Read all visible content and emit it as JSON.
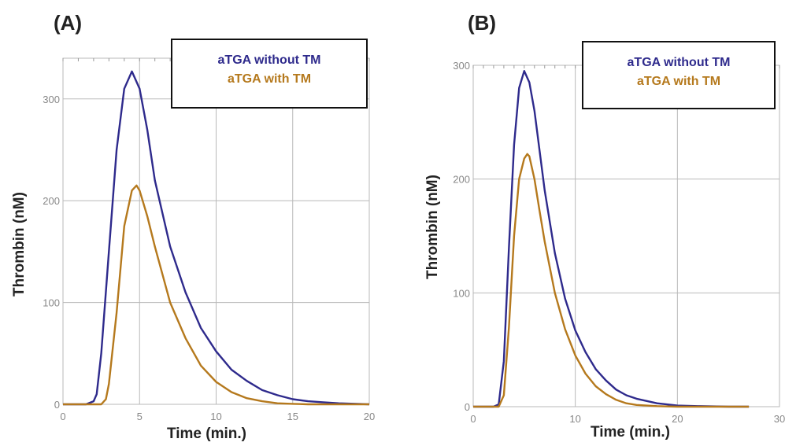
{
  "chart_data": [
    {
      "type": "line",
      "panel_label": "(A)",
      "xlabel": "Time (min.)",
      "ylabel": "Thrombin (nM)",
      "xlim": [
        0,
        20
      ],
      "ylim": [
        0,
        340
      ],
      "xticks": [
        0,
        5,
        10,
        15,
        20
      ],
      "yticks": [
        0,
        100,
        200,
        300
      ],
      "grid": true,
      "legend_position": "top-right",
      "series": [
        {
          "name": "aTGA without TM",
          "color": "#2e2a8c",
          "x": [
            0,
            1.5,
            2.0,
            2.2,
            2.5,
            3.0,
            3.5,
            4.0,
            4.5,
            5.0,
            5.5,
            6.0,
            7.0,
            8.0,
            9.0,
            10.0,
            11.0,
            12.0,
            13.0,
            14.0,
            15.0,
            16.0,
            17.0,
            18.0,
            20.0
          ],
          "y": [
            0,
            0,
            3,
            10,
            50,
            150,
            250,
            310,
            327,
            310,
            270,
            220,
            155,
            110,
            75,
            52,
            34,
            23,
            14,
            9,
            5,
            3,
            2,
            1,
            0
          ]
        },
        {
          "name": "aTGA with TM",
          "color": "#b5791d",
          "x": [
            0,
            2.5,
            2.8,
            3.0,
            3.5,
            4.0,
            4.5,
            4.8,
            5.0,
            5.5,
            6.0,
            7.0,
            8.0,
            9.0,
            10.0,
            11.0,
            12.0,
            13.0,
            14.0,
            15.0,
            16.0,
            20.0
          ],
          "y": [
            0,
            0,
            5,
            20,
            90,
            175,
            210,
            215,
            210,
            185,
            155,
            100,
            65,
            38,
            22,
            12,
            6,
            3,
            1,
            0.5,
            0,
            0
          ]
        }
      ]
    },
    {
      "type": "line",
      "panel_label": "(B)",
      "xlabel": "Time (min.)",
      "ylabel": "Thrombin (nM)",
      "xlim": [
        0,
        30
      ],
      "ylim": [
        0,
        300
      ],
      "xticks": [
        0,
        10,
        20,
        30
      ],
      "yticks": [
        0,
        100,
        200,
        300
      ],
      "grid": true,
      "legend_position": "top-right",
      "series": [
        {
          "name": "aTGA without TM",
          "color": "#2e2a8c",
          "x": [
            0,
            2.0,
            2.5,
            3.0,
            3.5,
            4.0,
            4.5,
            5.0,
            5.5,
            6.0,
            6.5,
            7.0,
            8.0,
            9.0,
            10.0,
            11.0,
            12.0,
            13.0,
            14.0,
            15.0,
            16.0,
            18.0,
            20.0,
            22.0,
            25.0,
            27.0
          ],
          "y": [
            0,
            0,
            2,
            40,
            140,
            230,
            280,
            295,
            285,
            260,
            225,
            190,
            135,
            95,
            67,
            48,
            33,
            23,
            15,
            10,
            7,
            3,
            1,
            0.5,
            0,
            0
          ]
        },
        {
          "name": "aTGA with TM",
          "color": "#b5791d",
          "x": [
            0,
            2.5,
            3.0,
            3.5,
            4.0,
            4.5,
            5.0,
            5.3,
            5.5,
            6.0,
            6.5,
            7.0,
            8.0,
            9.0,
            10.0,
            11.0,
            12.0,
            13.0,
            14.0,
            15.0,
            16.0,
            18.0,
            20.0,
            27.0
          ],
          "y": [
            0,
            0,
            10,
            70,
            150,
            200,
            218,
            222,
            220,
            200,
            172,
            145,
            100,
            68,
            45,
            29,
            18,
            11,
            6,
            3,
            1.5,
            0.5,
            0,
            0
          ]
        }
      ]
    }
  ]
}
